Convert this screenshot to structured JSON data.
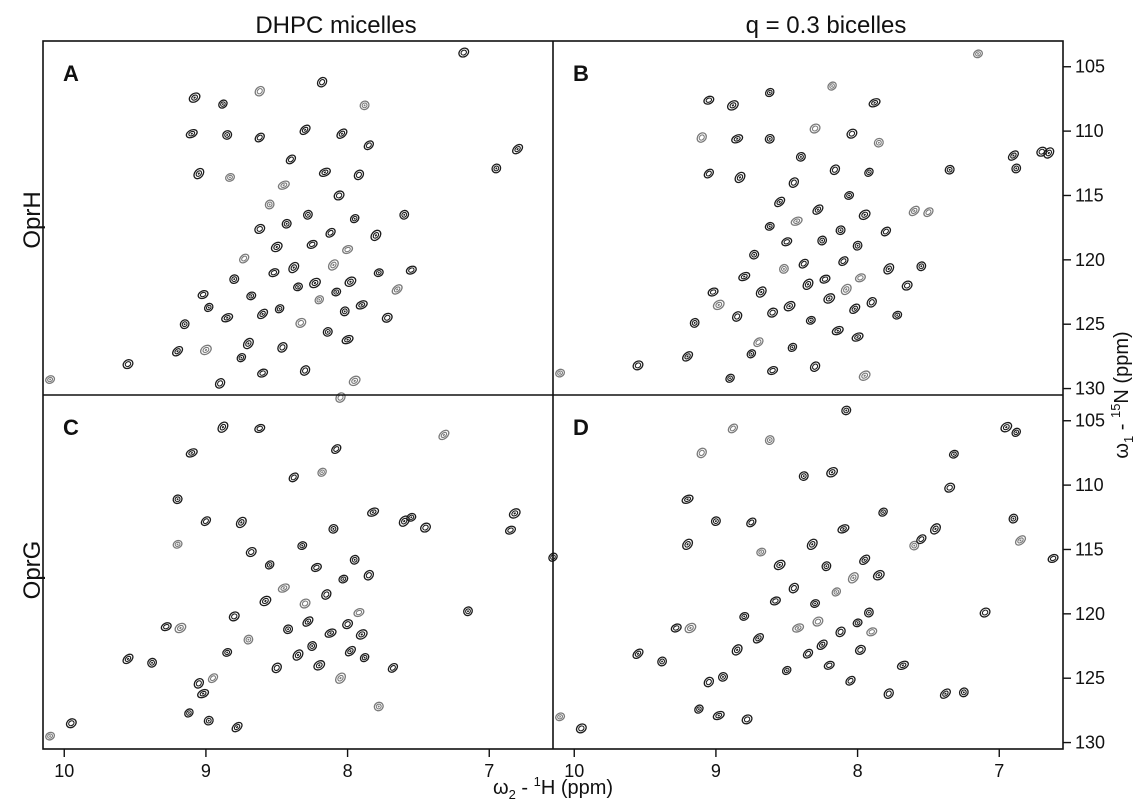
{
  "columns": [
    "DHPC micelles",
    "q = 0.3 bicelles"
  ],
  "rows": [
    "OprH",
    "OprG"
  ],
  "xlabel": {
    "omega": "ω",
    "sub": "2",
    "mid": " - ",
    "sup": "1",
    "tail": "H (ppm)"
  },
  "ylabel": {
    "omega": "ω",
    "sub": "1",
    "mid": " - ",
    "sup": "15",
    "tail": "N (ppm)"
  },
  "colors": {
    "frame": "#111111",
    "peak_dark": "#1c1c1c",
    "peak_light": "#7a7a7a"
  },
  "chart_data": [
    {
      "type": "scatter",
      "panel": "A",
      "ylabel_text": "OprH",
      "column": "DHPC micelles",
      "xlim": [
        10.15,
        6.55
      ],
      "ylim": [
        103,
        130.5
      ],
      "xticks": [
        10,
        9,
        8,
        7
      ],
      "yticks": [
        105,
        110,
        115,
        120,
        125,
        130
      ],
      "x_reversed": true,
      "y_reversed": true,
      "points": [
        [
          10.1,
          129.3
        ],
        [
          9.55,
          128.1
        ],
        [
          9.2,
          127.1
        ],
        [
          9.15,
          125
        ],
        [
          9.02,
          122.7
        ],
        [
          9.0,
          127.0
        ],
        [
          8.98,
          123.7
        ],
        [
          8.9,
          129.6
        ],
        [
          8.85,
          124.5
        ],
        [
          8.8,
          121.5
        ],
        [
          8.73,
          119.9
        ],
        [
          8.7,
          126.5
        ],
        [
          8.68,
          122.8
        ],
        [
          8.62,
          117.6
        ],
        [
          8.6,
          124.2
        ],
        [
          8.55,
          115.7
        ],
        [
          8.52,
          121.0
        ],
        [
          8.5,
          119.0
        ],
        [
          8.48,
          123.8
        ],
        [
          8.46,
          126.8
        ],
        [
          8.45,
          114.2
        ],
        [
          8.43,
          117.2
        ],
        [
          8.4,
          112.2
        ],
        [
          8.38,
          120.6
        ],
        [
          8.35,
          122.1
        ],
        [
          8.33,
          124.9
        ],
        [
          8.3,
          109.9
        ],
        [
          8.28,
          116.5
        ],
        [
          8.25,
          118.8
        ],
        [
          8.23,
          121.8
        ],
        [
          8.2,
          123.1
        ],
        [
          8.18,
          106.2
        ],
        [
          8.16,
          113.2
        ],
        [
          8.14,
          125.6
        ],
        [
          8.12,
          117.9
        ],
        [
          8.1,
          120.4
        ],
        [
          8.08,
          122.5
        ],
        [
          8.06,
          115.0
        ],
        [
          8.04,
          110.2
        ],
        [
          8.02,
          124.0
        ],
        [
          8.0,
          119.2
        ],
        [
          7.98,
          121.7
        ],
        [
          7.95,
          116.8
        ],
        [
          7.92,
          113.4
        ],
        [
          7.9,
          123.5
        ],
        [
          7.88,
          108.0
        ],
        [
          7.85,
          111.1
        ],
        [
          7.8,
          118.1
        ],
        [
          7.78,
          121.0
        ],
        [
          7.72,
          124.5
        ],
        [
          7.65,
          122.3
        ],
        [
          7.6,
          116.5
        ],
        [
          7.55,
          120.8
        ],
        [
          9.08,
          107.4
        ],
        [
          8.88,
          107.9
        ],
        [
          8.62,
          106.9
        ],
        [
          9.1,
          110.2
        ],
        [
          8.85,
          110.3
        ],
        [
          8.62,
          110.5
        ],
        [
          9.05,
          113.3
        ],
        [
          8.83,
          113.6
        ],
        [
          7.18,
          103.9
        ],
        [
          6.8,
          111.4
        ],
        [
          6.95,
          112.9
        ],
        [
          8.6,
          128.8
        ],
        [
          7.95,
          129.4
        ],
        [
          8.75,
          127.6
        ],
        [
          8.3,
          128.6
        ],
        [
          8.0,
          126.2
        ]
      ]
    },
    {
      "type": "scatter",
      "panel": "B",
      "ylabel_text": "OprH",
      "column": "q = 0.3 bicelles",
      "xlim": [
        10.15,
        6.55
      ],
      "ylim": [
        103,
        130.5
      ],
      "xticks": [
        10,
        9,
        8,
        7
      ],
      "yticks": [
        105,
        110,
        115,
        120,
        125,
        130
      ],
      "x_reversed": true,
      "y_reversed": true,
      "points": [
        [
          10.1,
          128.8
        ],
        [
          9.55,
          128.2
        ],
        [
          9.2,
          127.5
        ],
        [
          9.15,
          124.9
        ],
        [
          9.02,
          122.5
        ],
        [
          8.98,
          123.5
        ],
        [
          8.9,
          129.2
        ],
        [
          8.85,
          124.4
        ],
        [
          8.8,
          121.3
        ],
        [
          8.73,
          119.6
        ],
        [
          8.7,
          126.4
        ],
        [
          8.68,
          122.5
        ],
        [
          8.62,
          117.4
        ],
        [
          8.6,
          124.1
        ],
        [
          8.55,
          115.5
        ],
        [
          8.52,
          120.7
        ],
        [
          8.5,
          118.6
        ],
        [
          8.48,
          123.6
        ],
        [
          8.46,
          126.8
        ],
        [
          8.45,
          114.0
        ],
        [
          8.43,
          117.0
        ],
        [
          8.4,
          112.0
        ],
        [
          8.38,
          120.3
        ],
        [
          8.35,
          121.9
        ],
        [
          8.33,
          124.7
        ],
        [
          8.3,
          109.8
        ],
        [
          8.28,
          116.1
        ],
        [
          8.25,
          118.5
        ],
        [
          8.23,
          121.5
        ],
        [
          8.2,
          123.0
        ],
        [
          8.18,
          106.5
        ],
        [
          8.16,
          113.0
        ],
        [
          8.14,
          125.5
        ],
        [
          8.12,
          117.7
        ],
        [
          8.1,
          120.1
        ],
        [
          8.08,
          122.3
        ],
        [
          8.06,
          115.0
        ],
        [
          8.04,
          110.2
        ],
        [
          8.02,
          123.8
        ],
        [
          8.0,
          118.9
        ],
        [
          7.98,
          121.4
        ],
        [
          7.95,
          116.5
        ],
        [
          7.92,
          113.2
        ],
        [
          7.9,
          123.3
        ],
        [
          7.88,
          107.8
        ],
        [
          7.85,
          110.9
        ],
        [
          7.8,
          117.8
        ],
        [
          7.78,
          120.7
        ],
        [
          7.72,
          124.3
        ],
        [
          7.65,
          122.0
        ],
        [
          7.6,
          116.2
        ],
        [
          7.55,
          120.5
        ],
        [
          9.05,
          107.6
        ],
        [
          8.88,
          108.0
        ],
        [
          8.62,
          107.0
        ],
        [
          9.1,
          110.5
        ],
        [
          8.85,
          110.6
        ],
        [
          8.62,
          110.6
        ],
        [
          9.05,
          113.3
        ],
        [
          8.83,
          113.6
        ],
        [
          7.15,
          104.0
        ],
        [
          6.7,
          111.6
        ],
        [
          6.9,
          111.9
        ],
        [
          6.88,
          112.9
        ],
        [
          8.6,
          128.6
        ],
        [
          7.95,
          129.0
        ],
        [
          8.75,
          127.3
        ],
        [
          8.3,
          128.3
        ],
        [
          8.0,
          126.0
        ],
        [
          7.35,
          113.0
        ],
        [
          7.5,
          116.3
        ],
        [
          6.65,
          111.7
        ]
      ]
    },
    {
      "type": "scatter",
      "panel": "C",
      "ylabel_text": "OprG",
      "column": "DHPC micelles",
      "xlim": [
        10.15,
        6.55
      ],
      "ylim": [
        103,
        130.5
      ],
      "xticks": [
        10,
        9,
        8,
        7
      ],
      "yticks": [
        105,
        110,
        115,
        120,
        125,
        130
      ],
      "x_reversed": true,
      "y_reversed": true,
      "points": [
        [
          10.1,
          129.5
        ],
        [
          9.95,
          128.5
        ],
        [
          9.55,
          123.5
        ],
        [
          9.38,
          123.8
        ],
        [
          9.28,
          121.0
        ],
        [
          9.18,
          121.1
        ],
        [
          9.12,
          127.7
        ],
        [
          9.05,
          125.4
        ],
        [
          9.02,
          126.2
        ],
        [
          8.98,
          128.3
        ],
        [
          8.95,
          125.0
        ],
        [
          8.88,
          105.5
        ],
        [
          8.85,
          123.0
        ],
        [
          8.8,
          120.2
        ],
        [
          8.78,
          128.8
        ],
        [
          8.7,
          122.0
        ],
        [
          8.62,
          105.6
        ],
        [
          8.58,
          119.0
        ],
        [
          8.55,
          116.2
        ],
        [
          8.5,
          124.2
        ],
        [
          8.45,
          118.0
        ],
        [
          8.42,
          121.2
        ],
        [
          8.38,
          109.4
        ],
        [
          8.35,
          123.2
        ],
        [
          8.32,
          114.7
        ],
        [
          8.3,
          119.2
        ],
        [
          8.28,
          120.6
        ],
        [
          8.25,
          122.5
        ],
        [
          8.22,
          116.4
        ],
        [
          8.2,
          124.0
        ],
        [
          8.18,
          109.0
        ],
        [
          8.15,
          118.5
        ],
        [
          8.12,
          121.5
        ],
        [
          8.1,
          113.4
        ],
        [
          8.08,
          107.2
        ],
        [
          8.05,
          125.0
        ],
        [
          8.03,
          117.3
        ],
        [
          8.0,
          120.8
        ],
        [
          7.98,
          122.9
        ],
        [
          7.95,
          115.8
        ],
        [
          7.92,
          119.9
        ],
        [
          7.9,
          121.6
        ],
        [
          7.88,
          123.4
        ],
        [
          7.85,
          117.0
        ],
        [
          7.82,
          112.1
        ],
        [
          7.78,
          127.2
        ],
        [
          7.68,
          124.2
        ],
        [
          7.6,
          112.8
        ],
        [
          7.55,
          112.5
        ],
        [
          7.45,
          113.3
        ],
        [
          7.32,
          106.1
        ],
        [
          7.15,
          119.8
        ],
        [
          6.85,
          113.5
        ],
        [
          6.82,
          112.2
        ],
        [
          6.55,
          115.6
        ],
        [
          8.05,
          103.2
        ],
        [
          9.1,
          107.5
        ],
        [
          9.2,
          111.1
        ],
        [
          9.0,
          112.8
        ],
        [
          8.75,
          112.9
        ],
        [
          9.2,
          114.6
        ],
        [
          8.68,
          115.2
        ]
      ]
    },
    {
      "type": "scatter",
      "panel": "D",
      "ylabel_text": "OprG",
      "column": "q = 0.3 bicelles",
      "xlim": [
        10.15,
        6.55
      ],
      "ylim": [
        103,
        130.5
      ],
      "xticks": [
        10,
        9,
        8,
        7
      ],
      "yticks": [
        105,
        110,
        115,
        120,
        125,
        130
      ],
      "x_reversed": true,
      "y_reversed": true,
      "points": [
        [
          10.1,
          128.0
        ],
        [
          9.95,
          128.9
        ],
        [
          9.55,
          123.1
        ],
        [
          9.38,
          123.7
        ],
        [
          9.28,
          121.1
        ],
        [
          9.18,
          121.1
        ],
        [
          9.12,
          127.4
        ],
        [
          9.05,
          125.3
        ],
        [
          8.98,
          127.9
        ],
        [
          8.95,
          124.9
        ],
        [
          8.88,
          105.6
        ],
        [
          8.85,
          122.8
        ],
        [
          8.8,
          120.2
        ],
        [
          8.78,
          128.2
        ],
        [
          8.7,
          121.9
        ],
        [
          8.62,
          106.5
        ],
        [
          8.58,
          119.0
        ],
        [
          8.55,
          116.2
        ],
        [
          8.5,
          124.4
        ],
        [
          8.45,
          118.0
        ],
        [
          8.42,
          121.1
        ],
        [
          8.38,
          109.3
        ],
        [
          8.35,
          123.1
        ],
        [
          8.32,
          114.6
        ],
        [
          8.3,
          119.2
        ],
        [
          8.28,
          120.6
        ],
        [
          8.25,
          122.4
        ],
        [
          8.22,
          116.3
        ],
        [
          8.2,
          124.0
        ],
        [
          8.18,
          109.0
        ],
        [
          8.15,
          118.3
        ],
        [
          8.12,
          121.4
        ],
        [
          8.1,
          113.4
        ],
        [
          8.08,
          104.2
        ],
        [
          8.05,
          125.2
        ],
        [
          8.03,
          117.2
        ],
        [
          8.0,
          120.7
        ],
        [
          7.98,
          122.8
        ],
        [
          7.95,
          115.8
        ],
        [
          7.92,
          119.9
        ],
        [
          7.9,
          121.4
        ],
        [
          7.85,
          117.0
        ],
        [
          7.82,
          112.1
        ],
        [
          7.78,
          126.2
        ],
        [
          7.68,
          124.0
        ],
        [
          7.6,
          114.7
        ],
        [
          7.55,
          114.2
        ],
        [
          7.45,
          113.4
        ],
        [
          7.32,
          107.6
        ],
        [
          7.1,
          119.9
        ],
        [
          6.85,
          114.3
        ],
        [
          6.9,
          112.6
        ],
        [
          6.62,
          115.7
        ],
        [
          6.95,
          105.5
        ],
        [
          6.88,
          105.9
        ],
        [
          9.1,
          107.5
        ],
        [
          9.2,
          111.1
        ],
        [
          9.0,
          112.8
        ],
        [
          8.75,
          112.9
        ],
        [
          9.2,
          114.6
        ],
        [
          8.68,
          115.2
        ],
        [
          7.35,
          110.2
        ],
        [
          7.38,
          126.2
        ],
        [
          7.25,
          126.1
        ]
      ]
    }
  ]
}
